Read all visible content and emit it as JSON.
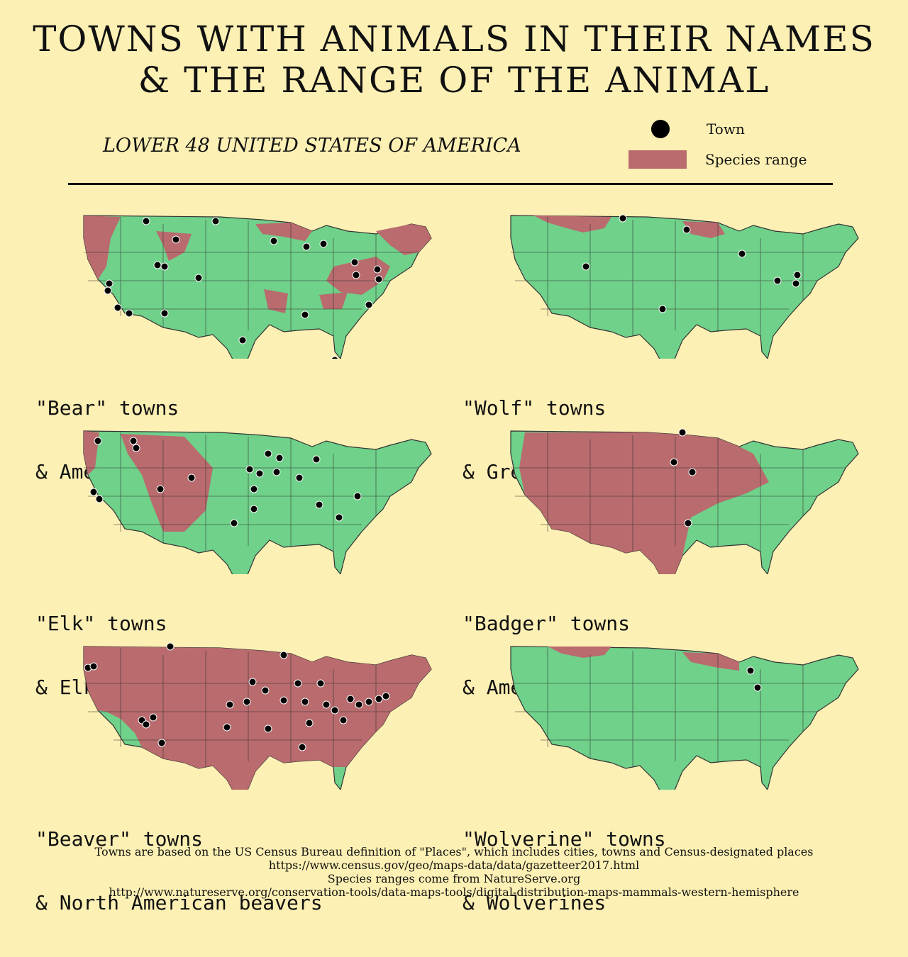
{
  "title": {
    "line1": "TOWNS WITH ANIMALS IN THEIR NAMES",
    "line2": "& THE RANGE OF THE ANIMAL"
  },
  "subtitle": "LOWER 48 UNITED STATES OF AMERICA",
  "legend": {
    "town_label": "Town",
    "range_label": "Species range"
  },
  "colors": {
    "background": "#fdf0b4",
    "land": "#6fd18a",
    "range": "#b96b6e",
    "town": "#000000",
    "border": "#333333"
  },
  "panels": [
    {
      "caption_line1": "\"Bear\" towns",
      "caption_line2": "& American black bears"
    },
    {
      "caption_line1": "\"Wolf\" towns",
      "caption_line2": "& Grey wolves"
    },
    {
      "caption_line1": "\"Elk\" towns",
      "caption_line2": "& Elk"
    },
    {
      "caption_line1": "\"Badger\" towns",
      "caption_line2": "& American badgers"
    },
    {
      "caption_line1": "\"Beaver\" towns",
      "caption_line2": "& North American beavers"
    },
    {
      "caption_line1": "\"Wolverine\" towns",
      "caption_line2": "& Wolverines"
    }
  ],
  "footer": {
    "line1": "Towns are based on the US Census Bureau definition of \"Places\", which includes cities, towns and Census-designated places",
    "line2": "https://www.census.gov/geo/maps-data/data/gazetteer2017.html",
    "line3": "Species ranges come from NatureServe.org",
    "line4": "http://www.natureserve.org/conservation-tools/data-maps-tools/digital-distribution-maps-mammals-western-hemisphere"
  }
}
